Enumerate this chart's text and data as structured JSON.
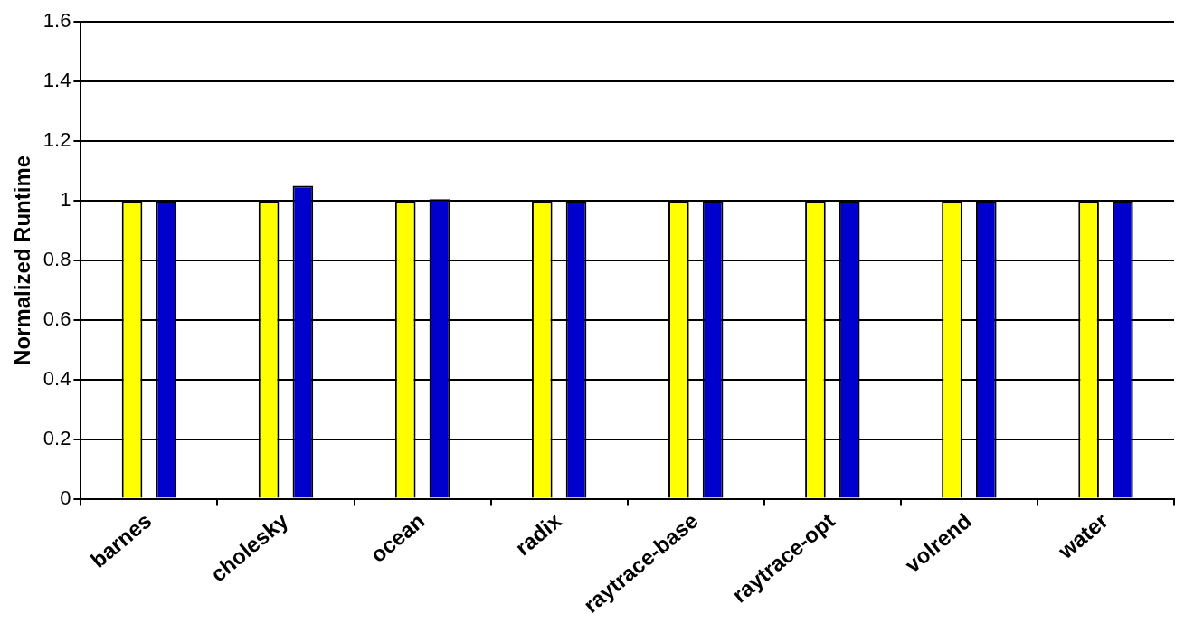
{
  "chart_data": {
    "type": "bar",
    "ylabel": "Normalized Runtime",
    "categories": [
      "barnes",
      "cholesky",
      "ocean",
      "radix",
      "raytrace-base",
      "raytrace-opt",
      "volrend",
      "water"
    ],
    "series": [
      {
        "color": "#ffff00",
        "values": [
          1,
          1,
          1,
          1,
          1,
          1,
          1,
          1
        ]
      },
      {
        "color": "#0000cc",
        "values": [
          1,
          1.05,
          1.005,
          1,
          1,
          1,
          1,
          1
        ]
      }
    ],
    "ylim": [
      0,
      1.6
    ],
    "yticks": [
      0,
      0.2,
      0.4,
      0.6,
      0.8,
      1,
      {
        "value": 1.2,
        "label": "1.2"
      },
      1.4,
      1.6
    ],
    "grid": "y",
    "legend": false
  }
}
